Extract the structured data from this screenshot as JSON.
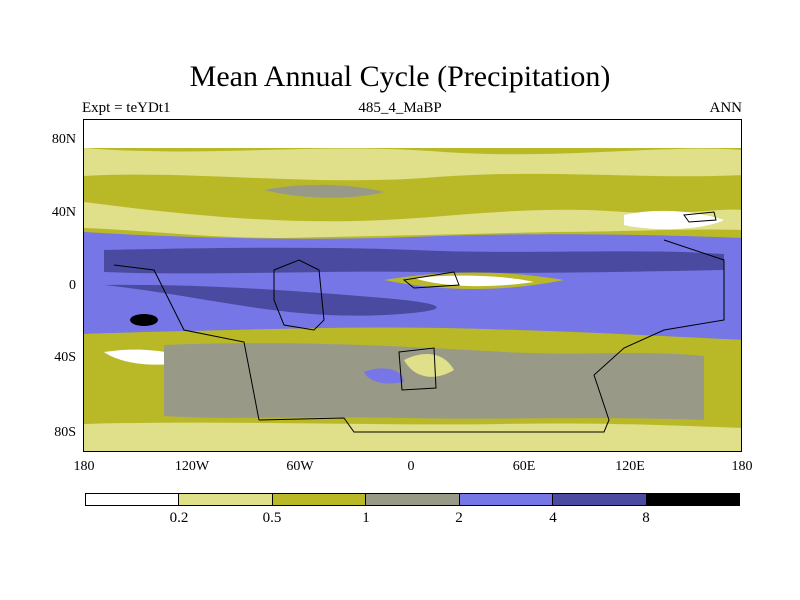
{
  "title": "Mean Annual Cycle (Precipitation)",
  "subtitle_left": "Expt = teYDt1",
  "subtitle_center": "485_4_MaBP",
  "subtitle_right": "ANN",
  "y_axis_labels": [
    "80N",
    "40N",
    "0",
    "40S",
    "80S"
  ],
  "x_axis_labels": [
    "180",
    "120W",
    "60W",
    "0",
    "60E",
    "120E",
    "180"
  ],
  "colorbar": {
    "labels": [
      "0.2",
      "0.5",
      "1",
      "2",
      "4",
      "8"
    ],
    "colors": [
      "#ffffff",
      "#e0e08a",
      "#b9b928",
      "#999987",
      "#7676e6",
      "#4a4aa0",
      "#000000"
    ]
  }
}
